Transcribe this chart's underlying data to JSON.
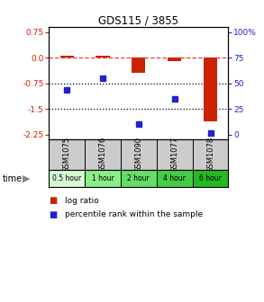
{
  "title": "GDS115 / 3855",
  "categories": [
    "GSM1075",
    "GSM1076",
    "GSM1090",
    "GSM1077",
    "GSM1078"
  ],
  "time_labels": [
    "0.5 hour",
    "1 hour",
    "2 hour",
    "4 hour",
    "6 hour"
  ],
  "log_ratios": [
    0.05,
    0.07,
    -0.45,
    -0.1,
    -1.85
  ],
  "percentile_ranks": [
    44,
    55,
    10,
    35,
    2
  ],
  "bar_color": "#cc2200",
  "dot_color": "#2222cc",
  "ylim": [
    -2.4,
    0.9
  ],
  "yticks_left": [
    0.75,
    0.0,
    -0.75,
    -1.5,
    -2.25
  ],
  "yticks_right": [
    100,
    75,
    50,
    25,
    0
  ],
  "ylabel_left_color": "#cc2200",
  "ylabel_right_color": "#2222cc",
  "legend_items": [
    "log ratio",
    "percentile rank within the sample"
  ],
  "background_color": "#ffffff",
  "gray_bg": "#cccccc",
  "time_colors": [
    "#d4f7d4",
    "#88ee88",
    "#66dd66",
    "#44cc44",
    "#22bb22"
  ]
}
